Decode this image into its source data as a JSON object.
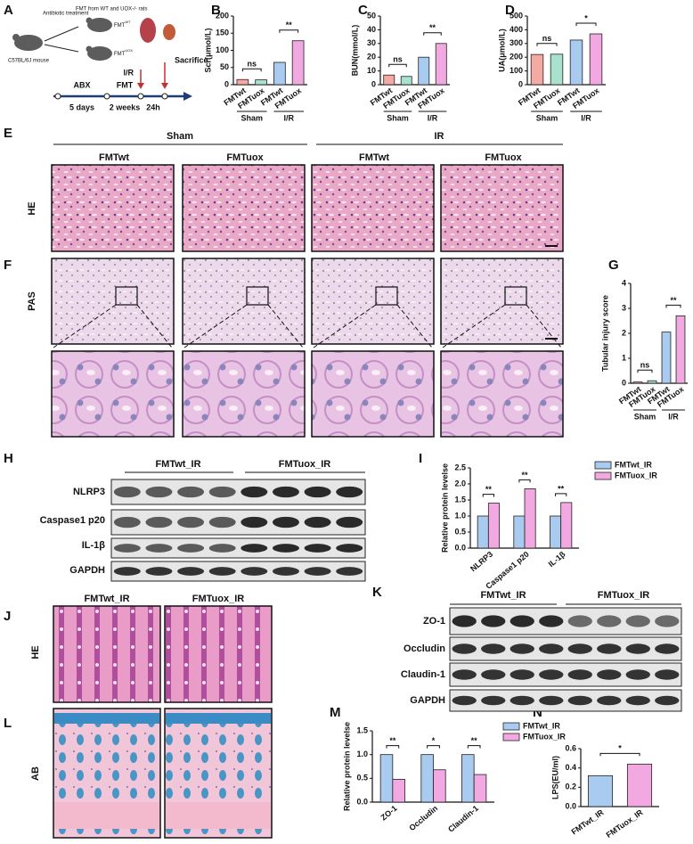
{
  "panel_letters": [
    "A",
    "B",
    "C",
    "D",
    "E",
    "F",
    "G",
    "H",
    "I",
    "J",
    "K",
    "L",
    "M",
    "N"
  ],
  "panel_a": {
    "antibiotic": "Antibiotic treatment",
    "fmt_from": "FMT from WT and UOX-/- rats",
    "fmt_wt": {
      "base": "FMT",
      "sup": "WT"
    },
    "fmt_uox": {
      "base": "FMT",
      "sup": "UOX"
    },
    "mouse": "C57BL/6J mouse",
    "abx": "ABX",
    "fmt": "FMT",
    "ir": "I/R",
    "sacrifice": "Sacrifice",
    "days": "5 days",
    "weeks": "2 weeks",
    "hours": "24h"
  },
  "panel_ef": {
    "groups": [
      "Sham",
      "IR"
    ],
    "columns": [
      "FMTwt",
      "FMTuox",
      "FMTwt",
      "FMTuox"
    ],
    "row_he": "HE",
    "row_pas": "PAS"
  },
  "panel_h": {
    "groups": [
      "FMTwt_IR",
      "FMTuox_IR"
    ],
    "rows": [
      "NLRP3",
      "Caspase1 p20",
      "IL-1β",
      "GAPDH"
    ]
  },
  "panel_jk": {
    "columns": [
      "FMTwt_IR",
      "FMTuox_IR"
    ],
    "row_he": "HE",
    "row_ab": "AB"
  },
  "panel_l": {
    "groups": [
      "FMTwt_IR",
      "FMTuox_IR"
    ],
    "rows": [
      "ZO-1",
      "Occludin",
      "Claudin-1",
      "GAPDH"
    ]
  },
  "chart_data": [
    {
      "type": "bar",
      "ylabel": "Scr(μmol/L)",
      "categories": [
        "FMTwt",
        "FMTuox",
        "FMTwt",
        "FMTuox"
      ],
      "values": [
        15,
        14,
        65,
        128
      ],
      "colors": [
        "#f4a9a3",
        "#a8e2cc",
        "#a9cbef",
        "#f2a9e2"
      ],
      "groups": [
        "Sham",
        "I/R"
      ],
      "annotations": [
        "ns",
        "**"
      ],
      "ylim": [
        0,
        200
      ],
      "yticks": [
        0,
        50,
        100,
        150,
        200
      ]
    },
    {
      "type": "bar",
      "ylabel": "BUN(mmol/L)",
      "categories": [
        "FMTwt",
        "FMTuox",
        "FMTwt",
        "FMTuox"
      ],
      "values": [
        7,
        6,
        20,
        30
      ],
      "colors": [
        "#f4a9a3",
        "#a8e2cc",
        "#a9cbef",
        "#f2a9e2"
      ],
      "groups": [
        "Sham",
        "I/R"
      ],
      "annotations": [
        "ns",
        "**"
      ],
      "ylim": [
        0,
        50
      ],
      "yticks": [
        0,
        10,
        20,
        30,
        40,
        50
      ]
    },
    {
      "type": "bar",
      "ylabel": "UA(μmol/L)",
      "categories": [
        "FMTwt",
        "FMTuox",
        "FMTwt",
        "FMTuox"
      ],
      "values": [
        220,
        222,
        325,
        370
      ],
      "colors": [
        "#f4a9a3",
        "#a8e2cc",
        "#a9cbef",
        "#f2a9e2"
      ],
      "groups": [
        "Sham",
        "I/R"
      ],
      "annotations": [
        "ns",
        "*"
      ],
      "ylim": [
        0,
        500
      ],
      "yticks": [
        0,
        100,
        200,
        300,
        400,
        500
      ]
    },
    {
      "type": "bar",
      "ylabel": "Tubular injury score",
      "categories": [
        "FMTwt",
        "FMTuox",
        "FMTwt",
        "FMTuox"
      ],
      "values": [
        0.05,
        0.1,
        2.05,
        2.7
      ],
      "colors": [
        "#f4a9a3",
        "#a8e2cc",
        "#a9cbef",
        "#f2a9e2"
      ],
      "groups": [
        "Sham",
        "I/R"
      ],
      "annotations": [
        "ns",
        "**"
      ],
      "ylim": [
        0,
        4
      ],
      "yticks": [
        0,
        1,
        2,
        3,
        4
      ]
    },
    {
      "type": "bar",
      "ylabel": "Relative protein levelse",
      "categories": [
        "NLRP3",
        "Caspase1 p20",
        "IL-1β"
      ],
      "series": [
        {
          "name": "FMTwt_IR",
          "color": "#a9cbef",
          "values": [
            1,
            1,
            1
          ]
        },
        {
          "name": "FMTuox_IR",
          "color": "#f2a9e2",
          "values": [
            1.4,
            1.85,
            1.42
          ]
        }
      ],
      "annotations": [
        "**",
        "**",
        "**"
      ],
      "ylim": [
        0,
        2.5
      ],
      "yticks": [
        {
          "value": 0,
          "label": "0.0"
        },
        0.5,
        {
          "value": 1,
          "label": "1.0"
        },
        1.5,
        {
          "value": 2,
          "label": "2.0"
        },
        2.5
      ]
    },
    {
      "type": "bar",
      "ylabel": "Relative protein levelse",
      "categories": [
        "ZO-1",
        "Occludin",
        "Claudin-1"
      ],
      "series": [
        {
          "name": "FMTwt_IR",
          "color": "#a9cbef",
          "values": [
            1,
            1,
            1
          ]
        },
        {
          "name": "FMTuox_IR",
          "color": "#f2a9e2",
          "values": [
            0.48,
            0.68,
            0.58
          ]
        }
      ],
      "annotations": [
        "**",
        "*",
        "**"
      ],
      "ylim": [
        0,
        1.5
      ],
      "yticks": [
        {
          "value": 0,
          "label": "0.0"
        },
        0.5,
        {
          "value": 1,
          "label": "1.0"
        },
        1.5
      ]
    },
    {
      "type": "bar",
      "ylabel": "LPS(EU/ml)",
      "categories": [
        "FMTwt_IR",
        "FMTuox_IR"
      ],
      "values": [
        0.32,
        0.44
      ],
      "colors": [
        "#a9cbef",
        "#f2a9e2"
      ],
      "annotations": [
        "*"
      ],
      "ylim": [
        0,
        0.6
      ],
      "yticks": [
        {
          "value": 0,
          "label": "0.0"
        },
        0.2,
        0.4,
        0.6
      ]
    }
  ]
}
